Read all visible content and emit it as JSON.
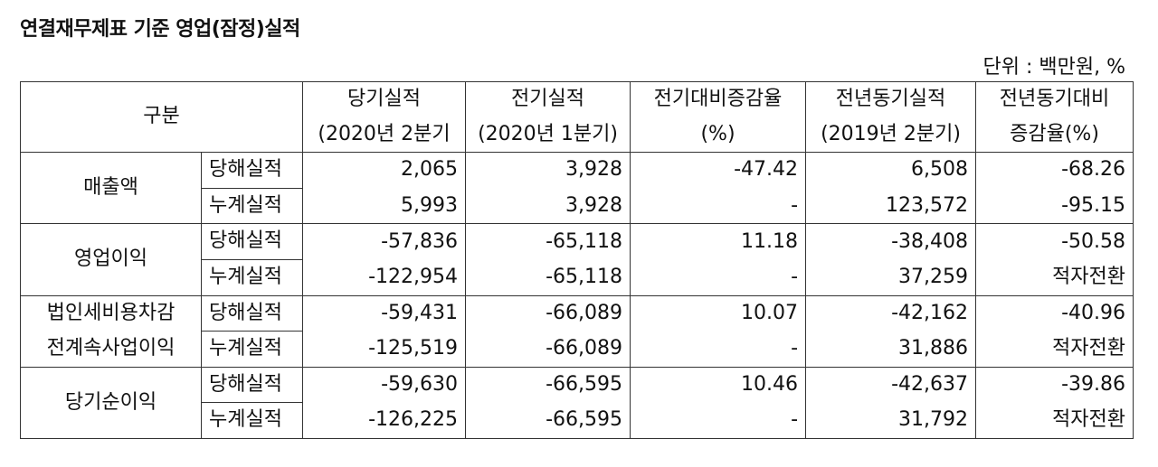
{
  "title": "연결재무제표 기준 영업(잠정)실적",
  "unit": "단위 : 백만원, %",
  "headers": {
    "gubun": "구분",
    "col1": [
      "당기실적",
      "(2020년 2분기"
    ],
    "col2": [
      "전기실적",
      "(2020년 1분기)"
    ],
    "col3": [
      "전기대비증감율",
      "(%)"
    ],
    "col4": [
      "전년동기실적",
      "(2019년 2분기)"
    ],
    "col5": [
      "전년동기대비",
      "증감율(%)"
    ]
  },
  "groups": [
    {
      "name": "매출액",
      "rows": [
        {
          "type": "당해실적",
          "values": [
            "2,065",
            "3,928",
            "-47.42",
            "6,508",
            "-68.26"
          ]
        },
        {
          "type": "누계실적",
          "values": [
            "5,993",
            "3,928",
            "-",
            "123,572",
            "-95.15"
          ]
        }
      ]
    },
    {
      "name": "영업이익",
      "rows": [
        {
          "type": "당해실적",
          "values": [
            "-57,836",
            "-65,118",
            "11.18",
            "-38,408",
            "-50.58"
          ]
        },
        {
          "type": "누계실적",
          "values": [
            "-122,954",
            "-65,118",
            "-",
            "37,259",
            "적자전환"
          ]
        }
      ]
    },
    {
      "name": "법인세비용차감\n전계속사업이익",
      "name_lines": [
        "법인세비용차감",
        "전계속사업이익"
      ],
      "rows": [
        {
          "type": "당해실적",
          "values": [
            "-59,431",
            "-66,089",
            "10.07",
            "-42,162",
            "-40.96"
          ]
        },
        {
          "type": "누계실적",
          "values": [
            "-125,519",
            "-66,089",
            "-",
            "31,886",
            "적자전환"
          ]
        }
      ]
    },
    {
      "name": "당기순이익",
      "rows": [
        {
          "type": "당해실적",
          "values": [
            "-59,630",
            "-66,595",
            "10.46",
            "-42,637",
            "-39.86"
          ]
        },
        {
          "type": "누계실적",
          "values": [
            "-126,225",
            "-66,595",
            "-",
            "31,792",
            "적자전환"
          ]
        }
      ]
    }
  ]
}
